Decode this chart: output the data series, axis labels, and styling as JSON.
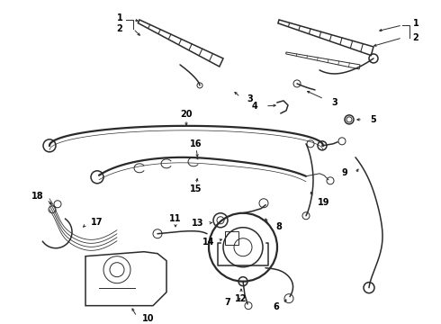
{
  "background_color": "#ffffff",
  "line_color": "#2a2a2a",
  "label_color": "#000000",
  "lw_thin": 0.7,
  "lw_med": 1.1,
  "lw_thick": 1.6,
  "fontsize": 7.0
}
